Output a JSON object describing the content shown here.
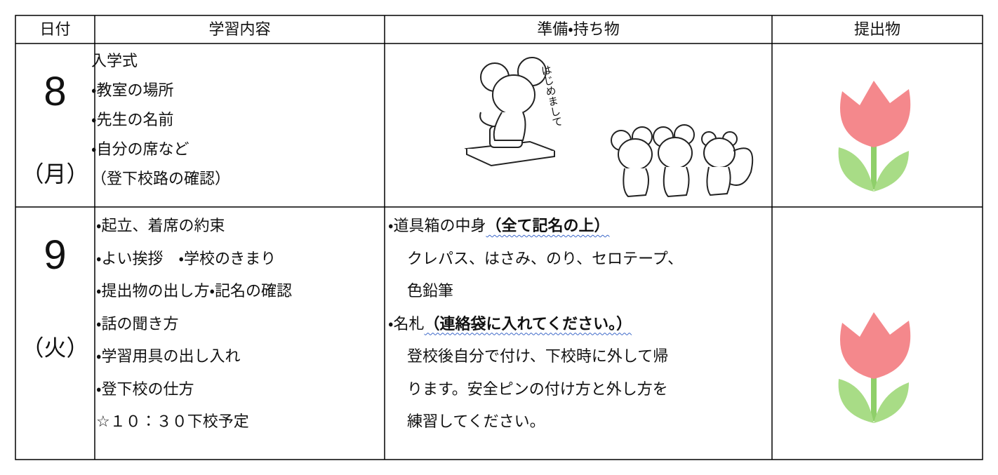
{
  "table": {
    "header": [
      "日付",
      "学習内容",
      "準備・持ち物",
      "提出物"
    ],
    "rows": [
      {
        "date": "8",
        "day": "（月）",
        "content": [
          "入学式",
          "・教室の場所",
          "・先生の名前",
          "・自分の席など",
          "（登下校路の確認）"
        ],
        "illustration_text": "はじめまして"
      },
      {
        "date": "9",
        "day": "（火）",
        "content": [
          "・起立、着席の約束",
          "・よい挨拶　・学校のきまり",
          "・提出物の出し方・記名の確認",
          "・話の聞き方",
          "・学習用具の出し入れ",
          "・登下校の仕方",
          "☆１０：３０下校予定"
        ],
        "prep": [
          {
            "lead": "・道具箱の中身",
            "emphasis": "（全て記名の上）",
            "detail": [
              "クレパス、はさみ、のり、セロテープ、",
              "色鉛筆"
            ]
          },
          {
            "lead": "・名札",
            "emphasis": "（連絡袋に入れてください。）",
            "detail": [
              "登校後自分で付け、下校時に外して帰",
              "ります。安全ピンの付け方と外し方を",
              "練習してください。"
            ]
          }
        ]
      }
    ]
  }
}
